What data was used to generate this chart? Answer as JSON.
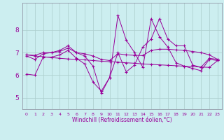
{
  "xlabel": "Windchill (Refroidissement éolien,°C)",
  "bg_color": "#cceef0",
  "line_color": "#990099",
  "grid_color": "#aacccc",
  "xlim": [
    -0.5,
    23.5
  ],
  "ylim": [
    4.5,
    9.2
  ],
  "yticks": [
    5,
    6,
    7,
    8
  ],
  "xticks": [
    0,
    1,
    2,
    3,
    4,
    5,
    6,
    7,
    8,
    9,
    10,
    11,
    12,
    13,
    14,
    15,
    16,
    17,
    18,
    19,
    20,
    21,
    22,
    23
  ],
  "series": [
    {
      "x": [
        0,
        1,
        2,
        3,
        4,
        5,
        6,
        7,
        8,
        9,
        10,
        11,
        12,
        13,
        14,
        15,
        16,
        17,
        18,
        19,
        20,
        21,
        22,
        23
      ],
      "y": [
        6.9,
        6.85,
        6.82,
        6.78,
        6.75,
        6.72,
        6.7,
        6.68,
        6.65,
        6.62,
        6.6,
        6.58,
        6.55,
        6.53,
        6.5,
        6.48,
        6.46,
        6.44,
        6.42,
        6.4,
        6.38,
        6.36,
        6.35,
        6.65
      ]
    },
    {
      "x": [
        0,
        1,
        2,
        3,
        4,
        5,
        6,
        7,
        8,
        9,
        10,
        11,
        12,
        13,
        14,
        15,
        16,
        17,
        18,
        19,
        20,
        21,
        22,
        23
      ],
      "y": [
        6.9,
        6.88,
        7.0,
        7.0,
        7.1,
        7.3,
        7.0,
        6.95,
        6.85,
        6.7,
        6.65,
        6.95,
        6.9,
        6.88,
        6.87,
        7.1,
        7.15,
        7.15,
        7.12,
        7.1,
        7.05,
        7.0,
        6.9,
        6.7
      ]
    },
    {
      "x": [
        0,
        1,
        2,
        3,
        4,
        5,
        6,
        7,
        8,
        9,
        10,
        11,
        12,
        13,
        14,
        15,
        16,
        17,
        18,
        19,
        20,
        21,
        22,
        23
      ],
      "y": [
        6.85,
        6.7,
        6.95,
        7.0,
        7.05,
        7.2,
        7.0,
        6.85,
        6.4,
        5.2,
        5.9,
        8.65,
        7.55,
        7.0,
        6.35,
        8.5,
        7.7,
        7.25,
        6.55,
        6.4,
        6.3,
        6.2,
        6.7,
        6.65
      ]
    },
    {
      "x": [
        0,
        1,
        2,
        3,
        4,
        5,
        6,
        7,
        8,
        9,
        10,
        11,
        12,
        13,
        14,
        15,
        16,
        17,
        18,
        19,
        20,
        21,
        22,
        23
      ],
      "y": [
        6.05,
        6.0,
        6.8,
        6.8,
        6.9,
        7.1,
        6.75,
        6.5,
        5.7,
        5.3,
        5.9,
        7.0,
        6.15,
        6.45,
        7.25,
        7.6,
        8.5,
        7.6,
        7.3,
        7.3,
        6.45,
        6.35,
        6.75,
        6.7
      ]
    }
  ]
}
